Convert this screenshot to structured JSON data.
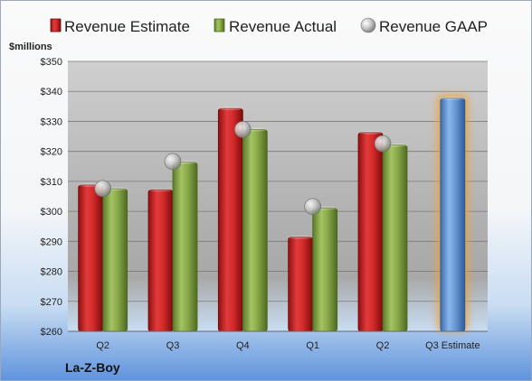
{
  "chart_data": {
    "type": "bar",
    "title": "",
    "ylabel": "$millions",
    "xlabel": "",
    "company": "La-Z-Boy",
    "ylim": [
      260,
      350
    ],
    "yticks": [
      260,
      270,
      280,
      290,
      300,
      310,
      320,
      330,
      340,
      350
    ],
    "ytick_labels": [
      "$260",
      "$270",
      "$280",
      "$290",
      "$300",
      "$310",
      "$320",
      "$330",
      "$340",
      "$350"
    ],
    "categories": [
      "Q2",
      "Q3",
      "Q4",
      "Q1",
      "Q2",
      "Q3 Estimate"
    ],
    "grid": true,
    "legend_position": "top",
    "series": [
      {
        "name": "Revenue Estimate",
        "kind": "bar",
        "color": "#d42a2a",
        "values": [
          308.8,
          307.2,
          334.3,
          291.4,
          326.3,
          null
        ]
      },
      {
        "name": "Revenue Actual",
        "kind": "bar",
        "color": "#8aaa4a",
        "values": [
          307.5,
          316.4,
          327.3,
          301.1,
          322.1,
          null
        ]
      },
      {
        "name": "Revenue GAAP",
        "kind": "marker",
        "color": "#b0b0b0",
        "values": [
          307.6,
          316.6,
          327.3,
          301.6,
          322.6,
          null
        ]
      }
    ],
    "estimate_bar": {
      "category_index": 5,
      "value": 337.7,
      "color": "#6a9ad6",
      "glow": "#f0a030"
    }
  }
}
